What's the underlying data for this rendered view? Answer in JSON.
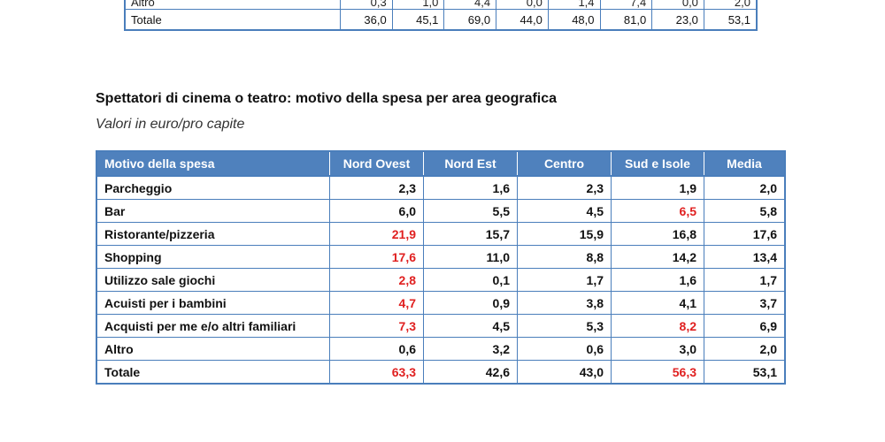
{
  "top_table": {
    "rows": [
      {
        "label": "Altro",
        "cells": [
          "0,3",
          "1,0",
          "4,4",
          "0,0",
          "1,4",
          "7,4",
          "0,0",
          "2,0"
        ],
        "red": [
          5
        ]
      },
      {
        "label": "Totale",
        "cells": [
          "36,0",
          "45,1",
          "69,0",
          "44,0",
          "48,0",
          "81,0",
          "23,0",
          "53,1"
        ],
        "red": []
      }
    ]
  },
  "title": "Spettatori di cinema o teatro: motivo della spesa per area geografica",
  "subtitle": "Valori in euro/pro capite",
  "main_table": {
    "headers": [
      "Motivo della spesa",
      "Nord Ovest",
      "Nord Est",
      "Centro",
      "Sud e Isole",
      "Media"
    ],
    "rows": [
      {
        "label": "Parcheggio",
        "cells": [
          "2,3",
          "1,6",
          "2,3",
          "1,9",
          "2,0"
        ],
        "red": []
      },
      {
        "label": "Bar",
        "cells": [
          "6,0",
          "5,5",
          "4,5",
          "6,5",
          "5,8"
        ],
        "red": [
          3
        ]
      },
      {
        "label": "Ristorante/pizzeria",
        "cells": [
          "21,9",
          "15,7",
          "15,9",
          "16,8",
          "17,6"
        ],
        "red": [
          0
        ]
      },
      {
        "label": "Shopping",
        "cells": [
          "17,6",
          "11,0",
          "8,8",
          "14,2",
          "13,4"
        ],
        "red": [
          0
        ]
      },
      {
        "label": "Utilizzo sale giochi",
        "cells": [
          "2,8",
          "0,1",
          "1,7",
          "1,6",
          "1,7"
        ],
        "red": [
          0
        ]
      },
      {
        "label": "Acuisti per i bambini",
        "cells": [
          "4,7",
          "0,9",
          "3,8",
          "4,1",
          "3,7"
        ],
        "red": [
          0
        ]
      },
      {
        "label": "Acquisti per me e/o altri familiari",
        "cells": [
          "7,3",
          "4,5",
          "5,3",
          "8,2",
          "6,9"
        ],
        "red": [
          0,
          3
        ]
      },
      {
        "label": "Altro",
        "cells": [
          "0,6",
          "3,2",
          "0,6",
          "3,0",
          "2,0"
        ],
        "red": []
      },
      {
        "label": "Totale",
        "cells": [
          "63,3",
          "42,6",
          "43,0",
          "56,3",
          "53,1"
        ],
        "red": [
          0,
          3
        ]
      }
    ]
  },
  "colors": {
    "header_bg": "#4f81bd",
    "border": "#4a7ebb",
    "highlight": "#e02020"
  }
}
